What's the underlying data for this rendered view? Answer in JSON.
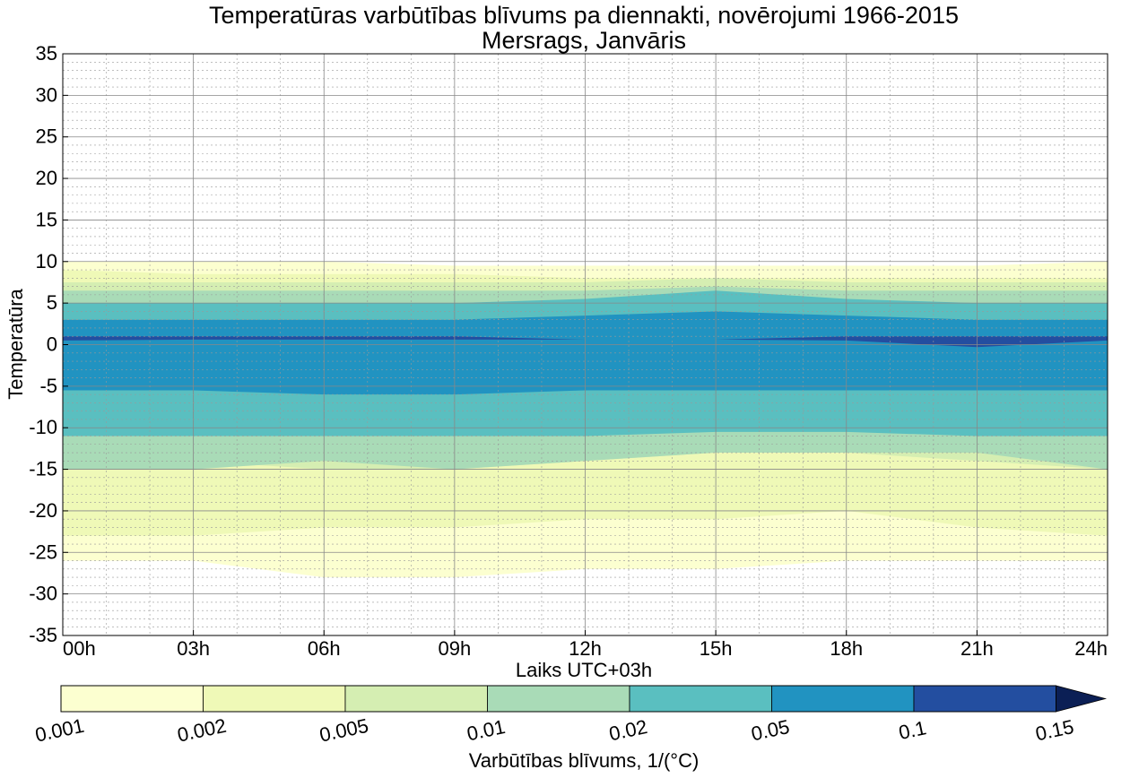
{
  "chart_data": {
    "type": "heatmap",
    "title": "Temperatūras varbūtības blīvums pa diennakti, novērojumi 1966-2015",
    "subtitle": "Mersrags, Janvāris",
    "xlabel": "Laiks UTC+03h",
    "ylabel": "Temperatūra",
    "x_ticks": [
      "00h",
      "03h",
      "06h",
      "09h",
      "12h",
      "15h",
      "18h",
      "21h",
      "24h"
    ],
    "xlim": [
      0,
      24
    ],
    "ylim": [
      -35,
      35
    ],
    "y_ticks": [
      -35,
      -30,
      -25,
      -20,
      -15,
      -10,
      -5,
      0,
      5,
      10,
      15,
      20,
      25,
      30,
      35
    ],
    "grid": true,
    "colorbar": {
      "label": "Varbūtības blīvums, 1/($^\\circ$C)",
      "levels": [
        0.001,
        0.002,
        0.005,
        0.01,
        0.02,
        0.05,
        0.1,
        0.15
      ],
      "tick_labels": [
        "0.001",
        "0.002",
        "0.005",
        "0.01",
        "0.02",
        "0.05",
        "0.1",
        "0.15"
      ],
      "colors": [
        "#fcffd0",
        "#eff9b7",
        "#d5eeb2",
        "#a9dbb7",
        "#5abfc0",
        "#2193c1",
        "#234ea0",
        "#0b1f55"
      ],
      "extend": "max"
    },
    "hours": [
      0,
      3,
      6,
      9,
      12,
      15,
      18,
      21,
      24
    ],
    "contour_bands": [
      {
        "level": 0.001,
        "upper": [
          10,
          10,
          10,
          9.5,
          9.5,
          9.5,
          9.5,
          9.5,
          10
        ],
        "lower": [
          -26,
          -26,
          -28,
          -28,
          -27,
          -27,
          -26,
          -26,
          -26
        ]
      },
      {
        "level": 0.002,
        "upper": [
          9,
          8.5,
          8.5,
          8.5,
          8,
          8,
          8,
          8,
          8
        ],
        "lower": [
          -23,
          -23,
          -22,
          -22,
          -21,
          -21,
          -20,
          -22,
          -23
        ]
      },
      {
        "level": 0.005,
        "upper": [
          7.5,
          7.5,
          7.5,
          7.5,
          7.5,
          8,
          7.5,
          7.5,
          7.5
        ],
        "lower": [
          -15,
          -14,
          -15,
          -15,
          -14,
          -13,
          -13,
          -14,
          -15
        ]
      },
      {
        "level": 0.01,
        "upper": [
          6.5,
          6.5,
          6.5,
          6.5,
          6.5,
          7,
          6.5,
          6.5,
          6.5
        ],
        "lower": [
          -15,
          -15,
          -14,
          -15,
          -14,
          -13,
          -13,
          -13,
          -15
        ]
      },
      {
        "level": 0.02,
        "upper": [
          5,
          5,
          5,
          5,
          5.5,
          6.5,
          5.5,
          5,
          5
        ],
        "lower": [
          -11,
          -11,
          -11,
          -11,
          -11,
          -10.5,
          -10.5,
          -11,
          -11
        ]
      },
      {
        "level": 0.05,
        "upper": [
          3,
          3,
          3,
          3,
          3.5,
          4,
          3.5,
          3,
          3
        ],
        "lower": [
          -5.5,
          -5.5,
          -6,
          -6,
          -5.5,
          -5.5,
          -5.5,
          -5.5,
          -5.5
        ]
      },
      {
        "level": 0.1,
        "upper": [
          1,
          1,
          1,
          1,
          0.6,
          0.6,
          1,
          1,
          1
        ],
        "lower": [
          0.5,
          0.6,
          0.6,
          0.6,
          0.6,
          0.6,
          0.5,
          -0.3,
          0.5
        ]
      }
    ]
  }
}
